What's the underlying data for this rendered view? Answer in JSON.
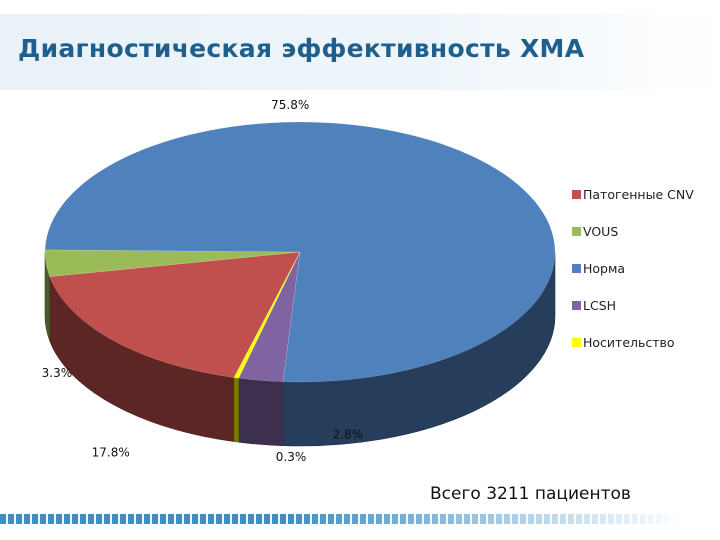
{
  "slide": {
    "title": "Диагностическая эффективность ХМА",
    "note": "Всего 3211 пациентов"
  },
  "chart_data": {
    "type": "pie",
    "style": "3d",
    "legend_position": "right",
    "slices": [
      {
        "name": "Патогенные CNV",
        "value": 17.8,
        "label": "17.8%",
        "color": "#c0504d"
      },
      {
        "name": "VOUS",
        "value": 3.3,
        "label": "3.3%",
        "color": "#9bbb59"
      },
      {
        "name": "Норма",
        "value": 75.8,
        "label": "75.8%",
        "color": "#4f81bd"
      },
      {
        "name": "LCSH",
        "value": 2.8,
        "label": "2.8%",
        "color": "#8064a2"
      },
      {
        "name": "Носительство",
        "value": 0.3,
        "label": "0.3%",
        "color": "#ffff00"
      }
    ]
  }
}
